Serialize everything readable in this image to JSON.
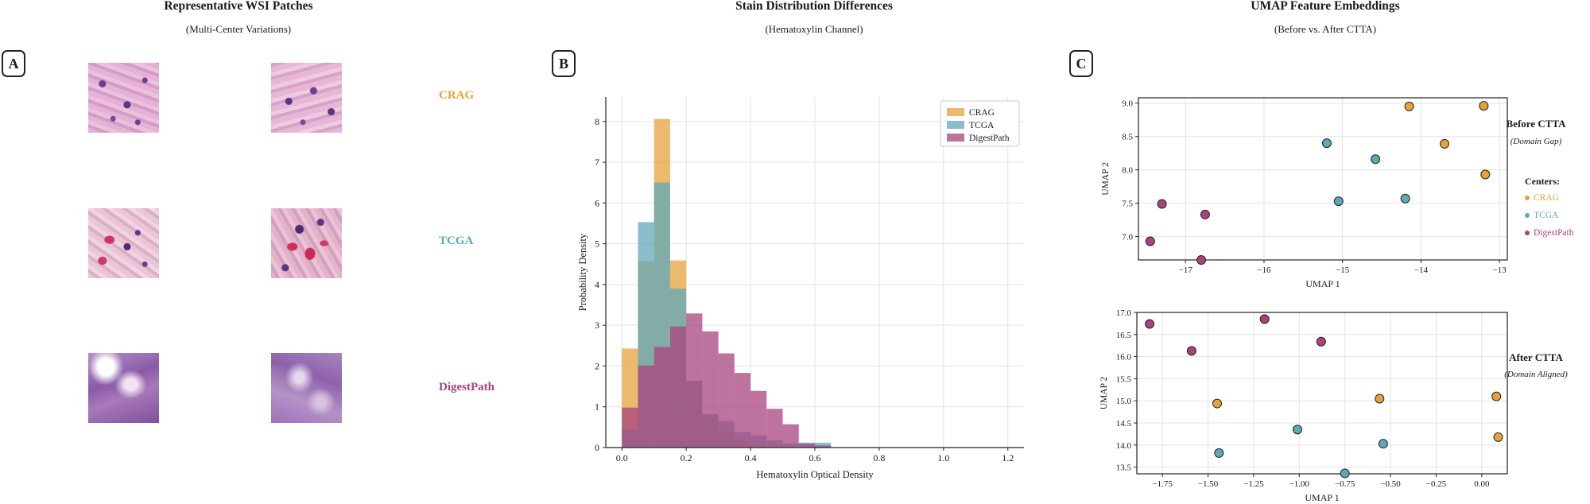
{
  "colors": {
    "CRAG": "#E6A23C",
    "TCGA": "#5FA8B8",
    "DigestPath": "#A8437E"
  },
  "panel_a": {
    "label": "A",
    "title": "Representative WSI Patches",
    "subtitle": "(Multi-Center Variations)",
    "rows": [
      {
        "center": "CRAG",
        "color": "#E6A23C",
        "patch_style": "stroma-pink"
      },
      {
        "center": "TCGA",
        "color": "#5FA8B8",
        "patch_style": "stroma-red-cells"
      },
      {
        "center": "DigestPath",
        "color": "#A8437E",
        "patch_style": "purple-wash"
      }
    ]
  },
  "panel_b": {
    "label": "B",
    "title": "Stain Distribution Differences",
    "subtitle": "(Hematoxylin Channel)"
  },
  "panel_c": {
    "label": "C",
    "title": "UMAP Feature Embeddings",
    "subtitle": "(Before vs. After CTTA)",
    "before_title": "Before CTTA",
    "before_sub": "(Domain Gap)",
    "after_title": "After CTTA",
    "after_sub": "(Domain Aligned)",
    "legend_title": "Centers:",
    "legend": [
      "CRAG",
      "TCGA",
      "DigestPath"
    ]
  },
  "chart_data": [
    {
      "type": "bar",
      "title": "Stain Distribution Differences",
      "subtitle": "(Hematoxylin Channel)",
      "xlabel": "Hematoxylin Optical Density",
      "ylabel": "Probability Density",
      "xlim": [
        -0.05,
        1.25
      ],
      "ylim": [
        0,
        8.6
      ],
      "xticks": [
        "0.0",
        "0.2",
        "0.4",
        "0.6",
        "0.8",
        "1.0",
        "1.2"
      ],
      "yticks": [
        "0",
        "1",
        "2",
        "3",
        "4",
        "5",
        "6",
        "7",
        "8"
      ],
      "bin_edges": [
        0.0,
        0.05,
        0.1,
        0.15,
        0.2,
        0.25,
        0.3,
        0.35,
        0.4,
        0.45,
        0.5,
        0.55,
        0.6,
        0.65
      ],
      "grid": true,
      "legend_position": "top-right",
      "series": [
        {
          "name": "CRAG",
          "color": "#E6A23C",
          "values": [
            2.43,
            4.57,
            8.06,
            4.59,
            1.64,
            0.8,
            0.4,
            0.18,
            0.0,
            0.0,
            0.0,
            0.0,
            0.0
          ]
        },
        {
          "name": "TCGA",
          "color": "#5FA8B8",
          "values": [
            0.44,
            5.53,
            6.5,
            3.9,
            1.63,
            0.82,
            0.65,
            0.38,
            0.3,
            0.18,
            0.1,
            0.12,
            0.12
          ]
        },
        {
          "name": "DigestPath",
          "color": "#A8437E",
          "values": [
            0.98,
            2.01,
            2.47,
            2.97,
            3.29,
            2.85,
            2.31,
            1.83,
            1.39,
            0.95,
            0.57,
            0.1,
            0.05
          ]
        }
      ]
    },
    {
      "type": "scatter",
      "title": "Before CTTA",
      "subtitle": "(Domain Gap)",
      "xlabel": "UMAP 1",
      "ylabel": "UMAP 2",
      "xlim": [
        -17.6,
        -12.9
      ],
      "ylim": [
        6.65,
        9.08
      ],
      "xticks": [
        -17,
        -16,
        -15,
        -14,
        -13
      ],
      "yticks": [
        "7.0",
        "7.5",
        "8.0",
        "8.5",
        "9.0"
      ],
      "yticks_num": [
        7.0,
        7.5,
        8.0,
        8.5,
        9.0
      ],
      "grid": true,
      "series": [
        {
          "name": "CRAG",
          "color": "#E6A23C",
          "points": [
            [
              -14.15,
              8.95
            ],
            [
              -13.2,
              8.96
            ],
            [
              -13.7,
              8.39
            ],
            [
              -13.18,
              7.93
            ]
          ]
        },
        {
          "name": "TCGA",
          "color": "#5FA8B8",
          "points": [
            [
              -15.2,
              8.4
            ],
            [
              -14.58,
              8.16
            ],
            [
              -15.05,
              7.53
            ],
            [
              -14.2,
              7.57
            ]
          ]
        },
        {
          "name": "DigestPath",
          "color": "#A8437E",
          "points": [
            [
              -17.3,
              7.49
            ],
            [
              -16.75,
              7.33
            ],
            [
              -17.45,
              6.93
            ],
            [
              -16.8,
              6.65
            ]
          ]
        }
      ]
    },
    {
      "type": "scatter",
      "title": "After CTTA",
      "subtitle": "(Domain Aligned)",
      "xlabel": "UMAP 1",
      "ylabel": "UMAP 2",
      "xlim": [
        -1.89,
        0.14
      ],
      "ylim": [
        13.35,
        17.0
      ],
      "xticks": [
        "−1.75",
        "−1.50",
        "−1.25",
        "−1.00",
        "−0.75",
        "−0.50",
        "−0.25",
        "0.00"
      ],
      "xticks_num": [
        -1.75,
        -1.5,
        -1.25,
        -1.0,
        -0.75,
        -0.5,
        -0.25,
        0.0
      ],
      "yticks": [
        "13.5",
        "14.0",
        "14.5",
        "15.0",
        "15.5",
        "16.0",
        "16.5",
        "17.0"
      ],
      "yticks_num": [
        13.5,
        14.0,
        14.5,
        15.0,
        15.5,
        16.0,
        16.5,
        17.0
      ],
      "grid": true,
      "series": [
        {
          "name": "CRAG",
          "color": "#E6A23C",
          "points": [
            [
              -1.45,
              14.94
            ],
            [
              -0.56,
              15.05
            ],
            [
              0.08,
              15.1
            ],
            [
              0.09,
              14.18
            ]
          ]
        },
        {
          "name": "TCGA",
          "color": "#5FA8B8",
          "points": [
            [
              -1.44,
              13.82
            ],
            [
              -1.01,
              14.35
            ],
            [
              -0.54,
              14.03
            ],
            [
              -0.75,
              13.36
            ]
          ]
        },
        {
          "name": "DigestPath",
          "color": "#A8437E",
          "points": [
            [
              -1.82,
              16.74
            ],
            [
              -1.59,
              16.13
            ],
            [
              -1.19,
              16.85
            ],
            [
              -0.88,
              16.34
            ]
          ]
        }
      ]
    }
  ]
}
